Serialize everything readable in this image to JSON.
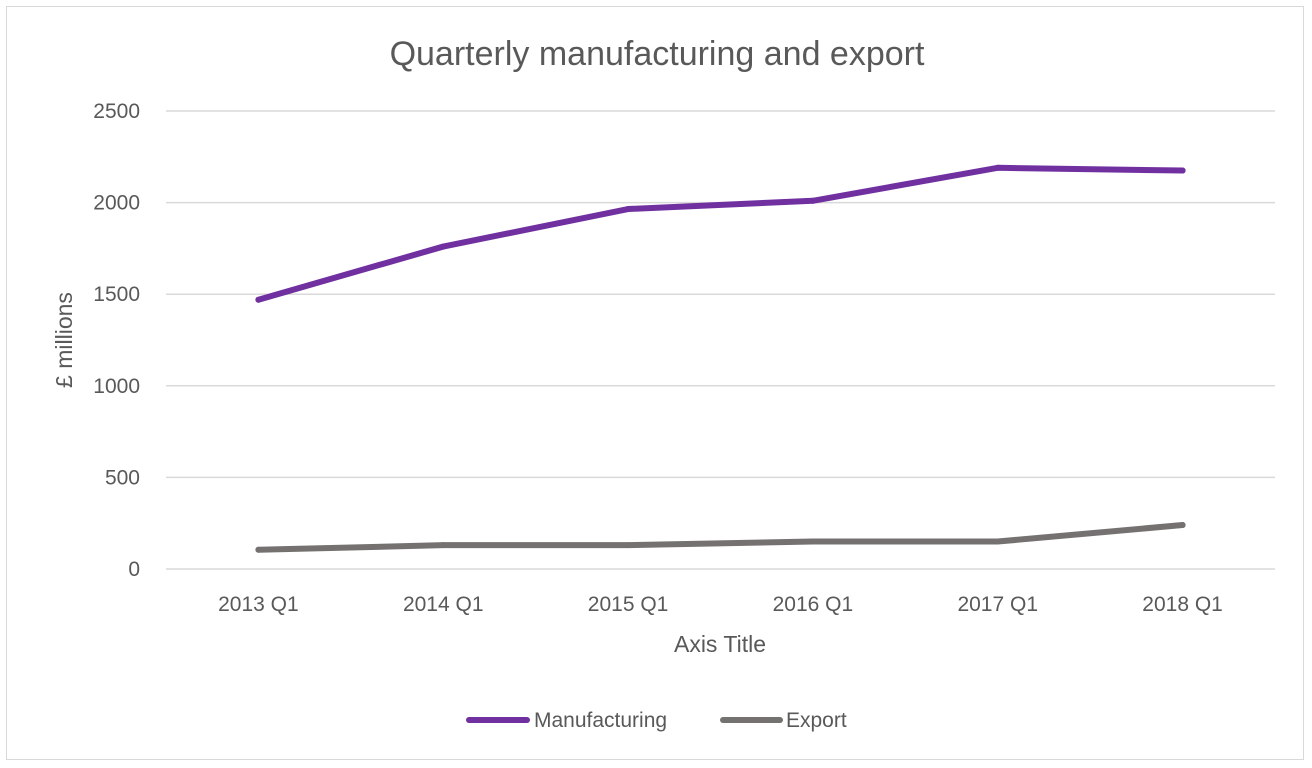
{
  "chart_data": {
    "type": "line",
    "title": "Quarterly manufacturing and export",
    "xlabel": "Axis Title",
    "ylabel": "£ millions",
    "categories": [
      "2013 Q1",
      "2014 Q1",
      "2015 Q1",
      "2016 Q1",
      "2017 Q1",
      "2018 Q1"
    ],
    "ylim": [
      0,
      2500
    ],
    "yticks": [
      "0",
      "500",
      "1000",
      "1500",
      "2000",
      "2500"
    ],
    "grid": true,
    "legend_position": "bottom",
    "series": [
      {
        "name": "Manufacturing",
        "color": "#7030a0",
        "values": [
          1470,
          1760,
          1965,
          2010,
          2190,
          2175
        ]
      },
      {
        "name": "Export",
        "color": "#767171",
        "values": [
          105,
          130,
          130,
          150,
          150,
          240
        ]
      }
    ]
  }
}
